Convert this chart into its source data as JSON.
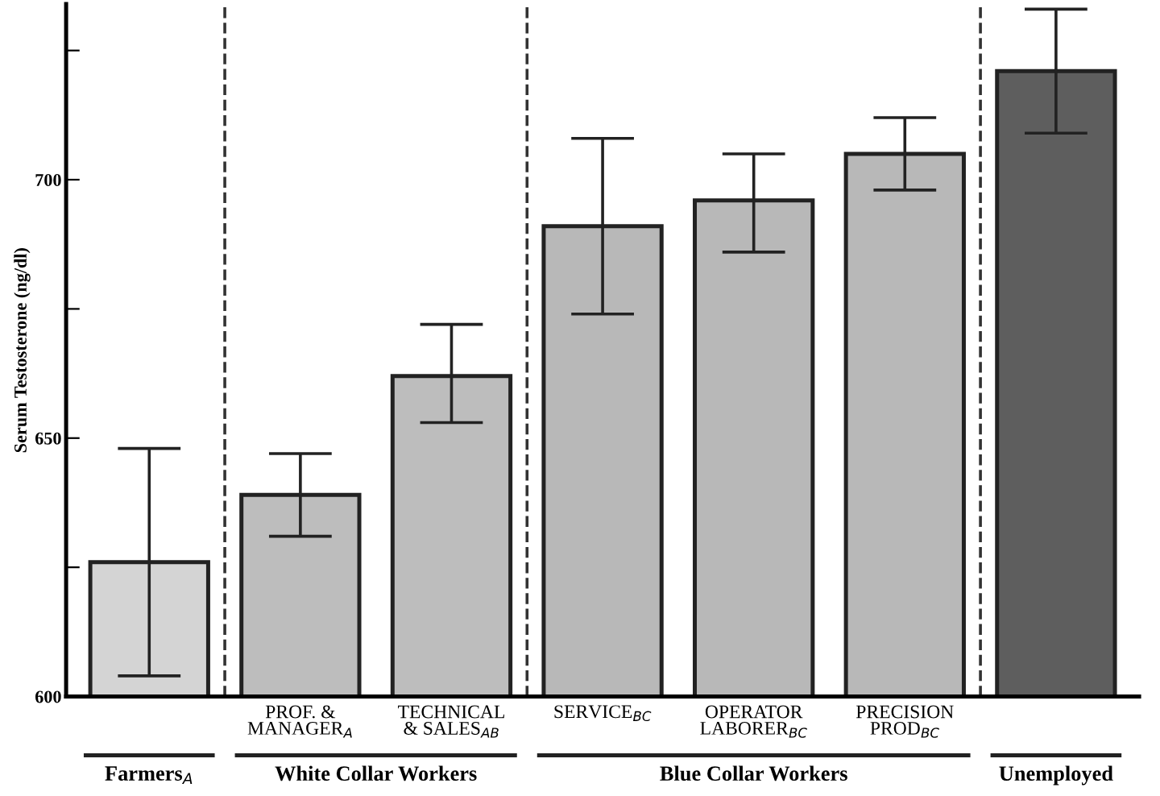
{
  "chart_data": {
    "type": "bar",
    "ylabel": "Serum Testosterone (ng/dl)",
    "categories": [
      null,
      "PROF. &\nMANAGER$_{A}$",
      "TECHNICAL\n& SALES$_{AB}$",
      "SERVICE$_{BC}$",
      "OPERATOR\nLABORER$_{BC}$",
      "PRECISION\nPROD$_{BC}$",
      null
    ],
    "values": [
      626,
      639,
      662,
      691,
      696,
      705,
      721
    ],
    "errors": [
      [
        604,
        648
      ],
      [
        631,
        647
      ],
      [
        653,
        672
      ],
      [
        674,
        708
      ],
      [
        686,
        705
      ],
      [
        698,
        712
      ],
      [
        709,
        733
      ]
    ],
    "colors": [
      "#d4d4d4",
      "#bdbdbd",
      "#bdbdbd",
      "#b8b8b8",
      "#b8b8b8",
      "#b8b8b8",
      "#5e5e5e"
    ],
    "ylim": [
      600,
      734
    ],
    "yticks": [
      600,
      {
        "value": 625,
        "label": null
      },
      650,
      {
        "value": 675,
        "label": null
      },
      700,
      {
        "value": 725,
        "label": null
      }
    ],
    "annotations": [
      "Farmers$_{A}$",
      "White Collar Workers",
      "Blue Collar Workers",
      "Unemployed"
    ],
    "grid": false,
    "legend": false
  }
}
